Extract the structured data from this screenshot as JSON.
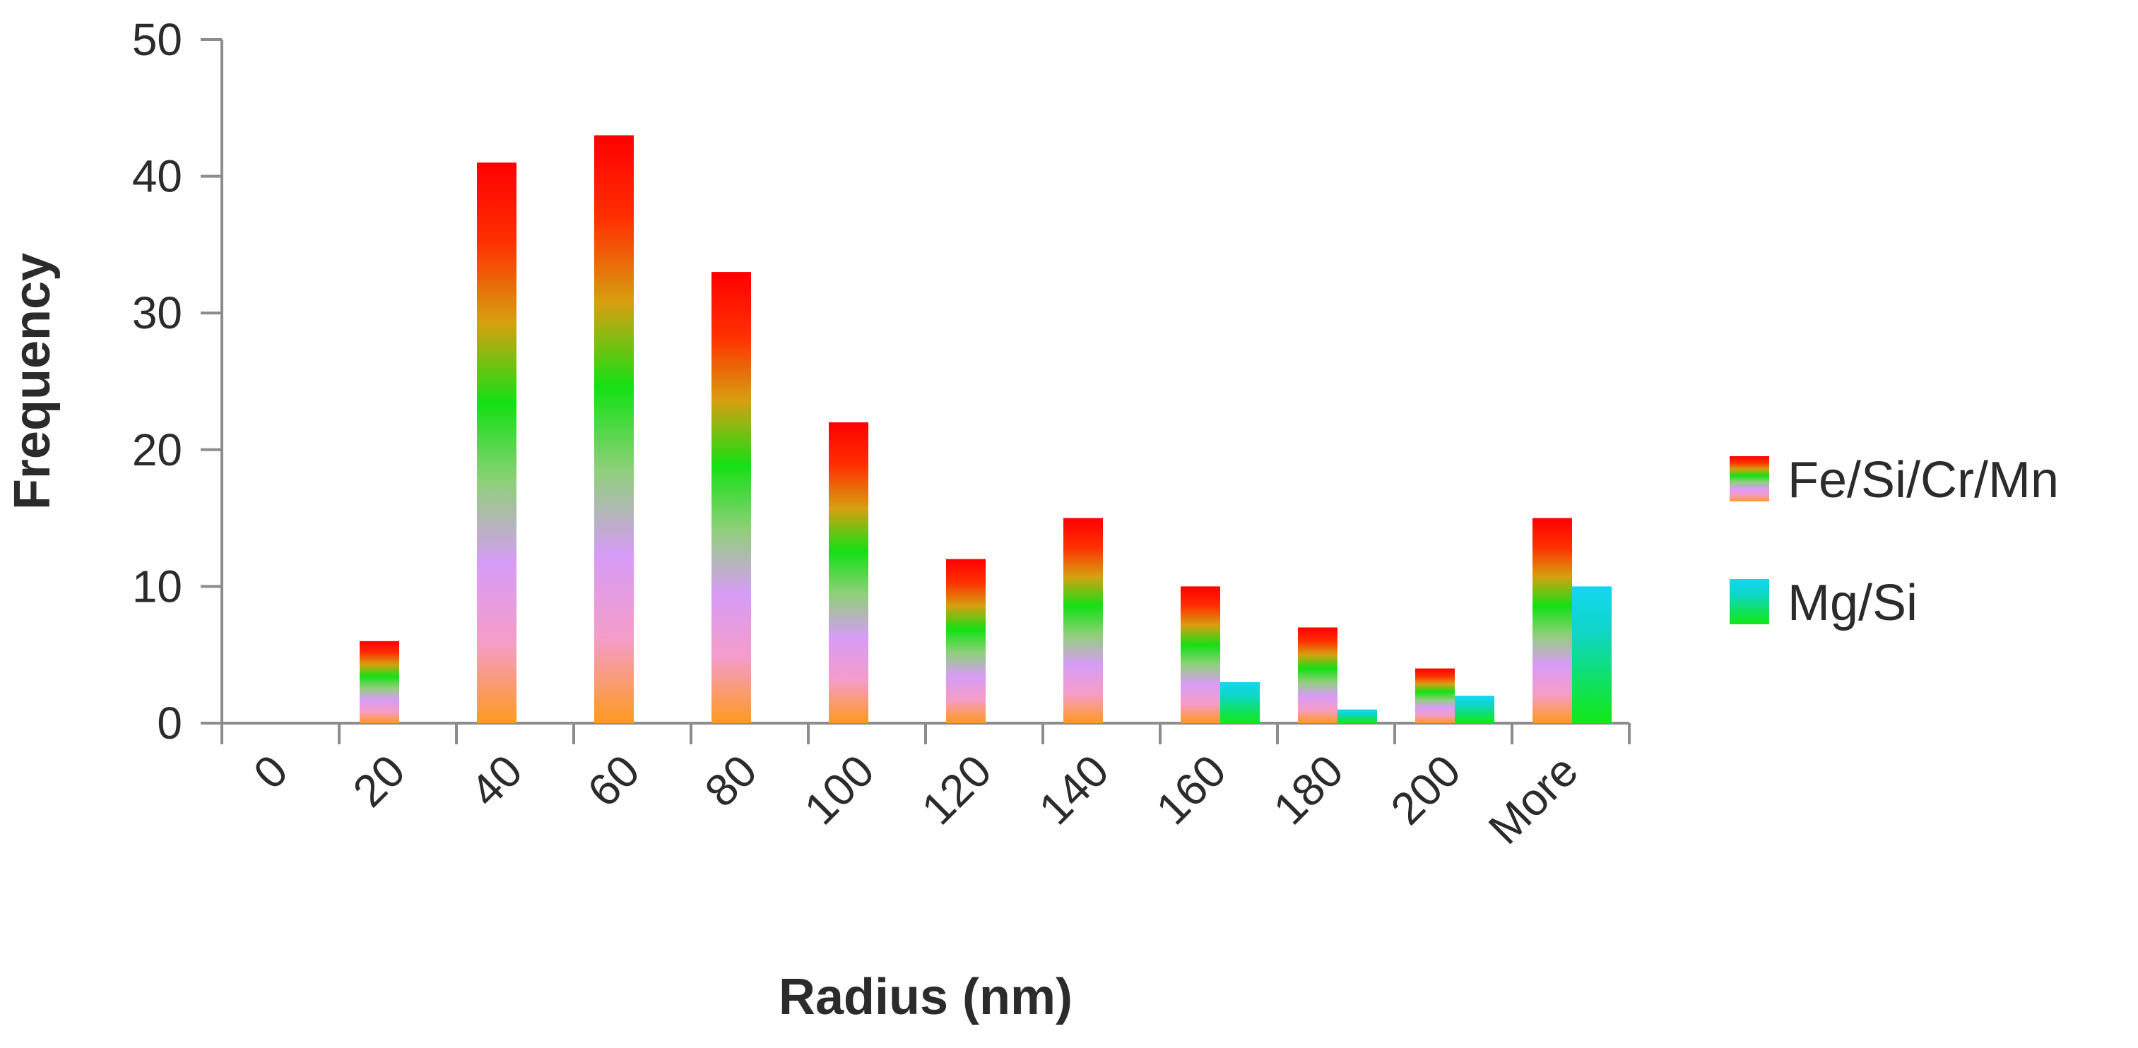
{
  "chart_data": {
    "type": "bar",
    "title": "",
    "xlabel": "Radius (nm)",
    "ylabel": "Frequency",
    "categories": [
      "0",
      "20",
      "40",
      "60",
      "80",
      "100",
      "120",
      "140",
      "160",
      "180",
      "200",
      "More"
    ],
    "ylim": [
      0,
      50
    ],
    "yticks": [
      "0",
      "10",
      "20",
      "30",
      "40",
      "50"
    ],
    "grid": false,
    "legend": "right",
    "series": [
      {
        "name": "Fe/Si/Cr/Mn",
        "values": [
          0,
          6,
          41,
          43,
          33,
          22,
          12,
          15,
          10,
          7,
          4,
          15
        ],
        "fill": "gradient",
        "colors": [
          "#ff9a1f",
          "#f59cc8",
          "#d79cf7",
          "#8fd07a",
          "#14e014",
          "#d6a010",
          "#ff3000",
          "#ff0000"
        ]
      },
      {
        "name": "Mg/Si",
        "values": [
          0,
          0,
          0,
          0,
          0,
          0,
          0,
          0,
          3,
          1,
          2,
          10
        ],
        "fill": "gradient",
        "colors": [
          "#11e817",
          "#0fe06a",
          "#0fd6c8",
          "#14d6f2"
        ]
      }
    ]
  }
}
